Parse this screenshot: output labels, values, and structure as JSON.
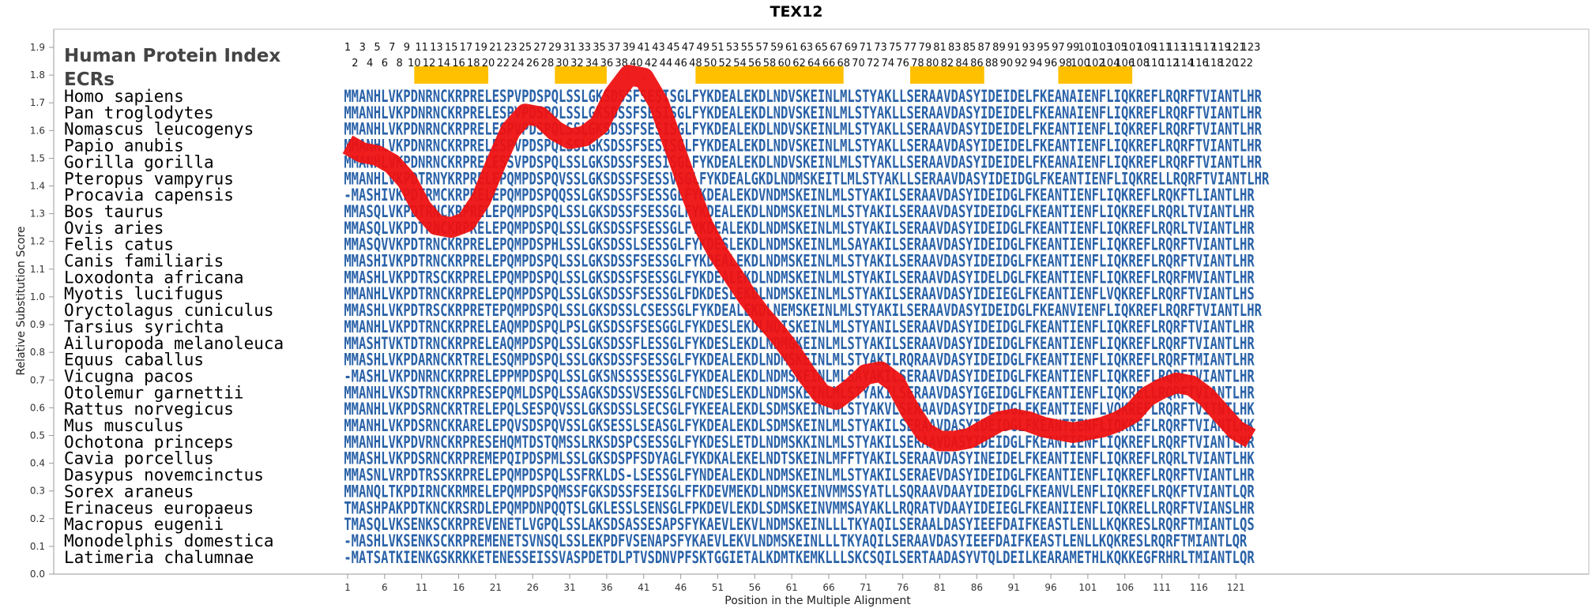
{
  "chart_data": {
    "type": "line",
    "title": "TEX12",
    "xlabel": "Position in the Multiple Alignment",
    "ylabel": "Relative Substitution Score",
    "legend_labels": {
      "index": "Human Protein Index",
      "ecrs": "ECRs"
    },
    "xlim": [
      1,
      123
    ],
    "ylim": [
      0.0,
      1.9
    ],
    "y_ticks": [
      "0.0",
      "0.1",
      "0.2",
      "0.3",
      "0.4",
      "0.5",
      "0.6",
      "0.7",
      "0.8",
      "0.9",
      "1.0",
      "1.1",
      "1.2",
      "1.3",
      "1.4",
      "1.5",
      "1.6",
      "1.7",
      "1.8",
      "1.9"
    ],
    "x_ticks": [
      "1",
      "6",
      "11",
      "16",
      "21",
      "26",
      "31",
      "36",
      "41",
      "46",
      "51",
      "56",
      "61",
      "66",
      "71",
      "76",
      "81",
      "86",
      "91",
      "96",
      "101",
      "106",
      "111",
      "116",
      "121"
    ],
    "human_index_odd": [
      "1",
      "3",
      "5",
      "7",
      "9",
      "11",
      "13",
      "15",
      "17",
      "19",
      "21",
      "23",
      "25",
      "27",
      "29",
      "31",
      "33",
      "35",
      "37",
      "39",
      "41",
      "43",
      "45",
      "47",
      "49",
      "51",
      "53",
      "55",
      "57",
      "59",
      "61",
      "63",
      "65",
      "67",
      "69",
      "71",
      "73",
      "75",
      "77",
      "79",
      "81",
      "83",
      "85",
      "87",
      "89",
      "91",
      "93",
      "95",
      "97",
      "99",
      "101",
      "103",
      "105",
      "107",
      "109",
      "111",
      "113",
      "115",
      "117",
      "119",
      "121",
      "123"
    ],
    "human_index_even": [
      "2",
      "4",
      "6",
      "8",
      "10",
      "12",
      "14",
      "16",
      "18",
      "20",
      "22",
      "24",
      "26",
      "28",
      "30",
      "32",
      "34",
      "36",
      "38",
      "40",
      "42",
      "44",
      "46",
      "48",
      "50",
      "52",
      "54",
      "56",
      "58",
      "60",
      "62",
      "64",
      "66",
      "68",
      "70",
      "72",
      "74",
      "76",
      "78",
      "80",
      "82",
      "84",
      "86",
      "88",
      "90",
      "92",
      "94",
      "96",
      "98",
      "100",
      "102",
      "104",
      "106",
      "108",
      "110",
      "112",
      "114",
      "116",
      "118",
      "120",
      "122"
    ],
    "ecrs": [
      [
        10,
        20
      ],
      [
        29,
        36
      ],
      [
        48,
        68
      ],
      [
        77,
        87
      ],
      [
        97,
        107
      ]
    ],
    "ecr_color": "#ffc000",
    "line_color": "#ee1111",
    "species": [
      "Homo sapiens",
      "Pan troglodytes",
      "Nomascus leucogenys",
      "Papio anubis",
      "Gorilla gorilla",
      "Pteropus vampyrus",
      "Procavia capensis",
      "Bos taurus",
      "Ovis aries",
      "Felis catus",
      "Canis familiaris",
      "Loxodonta africana",
      "Myotis lucifugus",
      "Oryctolagus cuniculus",
      "Tarsius syrichta",
      "Ailuropoda melanoleuca",
      "Equus caballus",
      "Vicugna pacos",
      "Otolemur garnettii",
      "Rattus norvegicus",
      "Mus musculus",
      "Ochotona princeps",
      "Cavia porcellus",
      "Dasypus novemcinctus",
      "Sorex araneus",
      "Erinaceus europaeus",
      "Macropus eugenii",
      "Monodelphis domestica",
      "Latimeria chalumnae"
    ],
    "sequences": [
      "MMANHLVKPDNRNCKRPRELESPVPDSPQLSSLGKSDSSFSESISGLFYKDEALEKDLNDVSKEINLMLSTYAKLLSERAAVDASYIDEIDELFKEANAIENFLIQKREFLRQRFTVIANTLHR",
      "MMANHLVKPDNRNCKRPRELESPVPDSPQLSSLGKSDSSFSESISGLFYKDEALEKDLNDVSKEINLMLSTYAKLLSERAAVDASYIDEIDELFKEANAIENFLIQKREFLRQRFTVIANTLHR",
      "MMANHLVKPDNRNCKRPRELESPVPDSPQLSSLGKSDSSFSESISGLFYKDEALEKDLNDVSKEINLMLSTYAKLLSERAAVDASYIDEIDELFKEANTIENFLIQKREFLRQRFTVIANTLHR",
      "MMANHLVKPDNRNCKRPRELESPVPDSPQLSSLGKSDSSFSESISGLFYKDEALEKDLNDVSKEINLMLSTYAKLLSERAAVDASYIDEIDELFKEANTIENFLIQKREFLRQRFTVIANTLHR",
      "MMANHLVKPDNRNCKRPRELESSVPDSPQLSSLGKSDSSFSESISGLFYKDEALEKDLNDVSKEINLMLSTYAKLLSERAAVDASYIDEIDELFKEANAIENFLIQKREFLRQRFTVIANTLHR",
      "MMANHLVKPDTRNYKRPRELEPQMPDSPQVSSLGKSDSSFSESSVSGLFYKDEALGKDLNDMSKEITLMLSTYAKLLSERAAVDASYIDEIDGLFKEANTIENFLIQKRELLRQRFTVIANTLHR",
      "-MASHIVKPDTRMCKRPRELEPQMPDSPQQSSLGKSDSSFSESSGLFYKDEALEKDVNDMSKEINLMLSTYAKILSERAAVDASYIDEIDGLFKEANTIENFLIQKREFLRQKFTLIANTLHR",
      "MMASQLVKPDTRNCKRPRELEPQMPDSPQLSSLGKSDSSFSESSGLFYKDEALEKDLNDMSKEINLMLSTYAKILSERAAVDASYIDEIDGLFKEANTIENFLIQKREFLRQRLTVIANTLHR",
      "MMASQLVKPDTRNCKRPRELEPQMPDSPQLSSLGKSDSSFSESSGLFYKDEALEKDLNDMSKEINLMLSTYAKILSERAAVDASYIDEIDGLFKEANTIENFLIQKREFLRQRLTVIANTLHR",
      "MMASQVVKPDTRNCKRPRELEPQMPDSPHLSSLGKSDSSLSESSGLFYKDESLEKDLNDMSKEINLMLSAYAKILSERAAVDASYIDEIDGLFKEANTIENFLIQKREFLRQRFTVIANTLHR",
      "MMASHIVKPDTRNCKRPRELEPQMPDSPQLSSLGKSDSSFSESSGLFYKDEALEKDLNDMSKEINLMLSTYAKILSERAAVDASYIDEIDGLFKEANTIENFLIQKREFLRQRFTVIANTLHR",
      "MMASHLVKPDTRSCKRPRELEPQMPDSPQLSSLGKSDSSFSESSGLFYKDEALEKDLNDMSKEINLMLSTYAKILSERAAVDASYIDELDGLFKEANTIENFLIQKREFLRQRFMVIANTLHR",
      "MMANHLVKPDTRNCKRPRELEPQMPDSPQLSSLGKSDSSFSESSGLFDKDESLEKDLNDMSKEINLMLSTYAKILSERAAVDASYIDEIEGLFKEANTIENFLVQKREFLRQRFTVIANTLHS",
      "MMASHLVKPDTRSCKRPRETEPQMPDSPQLSSLGKSDSSLCSESSGLFYKDEALEKDLNEMSKEINLMLSTYAKILSERAAVDASYIDEIDGLFKEANVIENFLIQKREFLRQRFTVIANTLHR",
      "MMANHLVKPDTRNCKRPRELEAQMPDSPQLPSLGKSDSSFSESGGLFYKDESLEKDLNDISKEINLMLSTYANILSERAAVDASYIDEIDGLFKEANTIENFLIQKREFLRQRFTVIANTLHR",
      "MMASHTVKTDTRNCKRPRELEAQMPDSPQLSSLGKSDSSFLESSGLFYKDESLEKDLNDMGKEINLMLSTYAKILSERAAVDASYIDEIDGLFKEANTIENFLIQKREFLRQRFTVIANTLHR",
      "MMASHLVKPDARNCKRTRELESQMPDSPQLSSLGKSDSSFSESSGLFYKDEALEKDLNDMSKEINLMLSTYAKILRQRAAVDASYIDEIDGLFKEANTIENFLIQKREFLRQRFTMIANTLHR",
      "-MASHLVKPDNRNCKRPRELEPPMPDSPQLSSLGKSNSSSSESSGLFYKDEALEKDLNDMSKEINLMLSAYAKILSERAAVDASYIDEIDGLFKEANTIENFLIQKREFLRQRFTVIANTLHR",
      "MMANHLVKSDTRNCKRPRESEPQMLDSPQLSSAGKSDSSVSESSGLFCNDESLEKDLNDMSKEINLMLSTYAKILSERAAVDASYIGEIDGLFKEANTIENFLIQKRELLRQRFTVIANTLHR",
      "MMANHLVKPDSRNCKRTRELEPQLSESPQVSSLGKSDSSLSECSGLFYKEEALEKDLSDMSKEINLMLSTYAKVLSERAAVDASYIDEIDGLFKEANTIENFLVQKREFLRQRFTVITNTLHK",
      "MMANHLVKPDSRNCKRARELEPQVSDSPQVSSLGKSESSLSEASGLFYKDEALEKDLSDMSKEINLMLSTYAKILSERAAVDASYIDEIDGLFKEANTIENFLIQKREFLRQRFTVIANTLHK",
      "MMANHLVKPDVRNCKRPRESEHQMTDSTQMSSLRKSDSPCSESSGLFYKDESLETDLNDMSKKINLMLSTYAKILSERAAVDASYIDEIDGLFKEANTIENFLIQKREFLRQRFTVIANTLHR",
      "MMASHLVKPDSRNCKRPREMEPQIPDSPMLSSLGKSDSPFSDYAGLFYKDKALEKELNDTSKEINLMFFTYAKILSERAAVDASYINEIDELFKEANTIENFLIQKREFLRQRLTVIANTLHK",
      "MMASNLVRPDTRSSKRPRELEPQMPDSPQLSSFRKLDS-LSESSGLFYNDEALEKDLNDMSKEINLMLSTYAKILSERAEVDASYIDEIDGLFKEANTIENFLIQKREFLRQRFTVIANTLHR",
      "MMANQLTKPDIRNCKRMRELEPQMPDSPQMSSFGKSDSSFSEISGLFFKDEVMEKDLNDMSKEINVMMSSYATLLSQRAAVDAAYIDEIDGLFKEANVLENFLIQKREFLRQKFTVIANTLQR",
      "TMASHPAKPDTKNCKRSRDLEPQMPDNPQQTSLGKLESSLSENSGLFPKDEVLEKDLSDMSKEINVMMSAYAKLLRQRATVDAAYIDEIEGLFKEANIIENFLIQKRELLRQRFTVIANSLHR",
      "TMASQLVKSENKSCKRPREVENETLVGPQLSSLAKSDSASSESAPSFYKAEVLEKVLNDMSKEINLLLTKYAQILSERAALDASYIEEFDAIFKEASTLENLLKQKRESLRQRFTMIANTLQS",
      "-MASHLVKSENKSCKRPREMENETSVNSQLSSLEKPDFVSENAPSFYKAEVLEKVLNDMSKEINLLLTKYAQILSERAAVDASYIEEFDAIFKEASTLENLLKQKRESLRQRFTMIANTLQR",
      "-MATSATKIENKGSKRKKETENESSEISSVASPDETDLPTVSDNVPFSKTGGIETALKDMTKEMKLLLSKCSQILSERTAADASYVTQLDEILKEARAMETHLKQKKEGFRHRLTMIANTLQR"
    ],
    "series": [
      {
        "x": [
          1,
          3,
          5,
          7,
          9,
          11,
          13,
          15,
          17,
          19,
          21,
          23,
          25,
          27,
          29,
          31,
          33,
          35,
          37,
          39,
          41,
          43,
          45,
          47,
          49,
          51,
          53,
          55,
          57,
          59,
          61,
          63,
          65,
          67,
          69,
          71,
          73,
          75,
          77,
          79,
          81,
          83,
          85,
          87,
          89,
          91,
          93,
          95,
          97,
          99,
          101,
          103,
          105,
          107,
          109,
          111,
          113,
          115,
          117,
          119,
          121,
          123
        ],
        "y": [
          1.55,
          1.52,
          1.51,
          1.48,
          1.42,
          1.32,
          1.26,
          1.25,
          1.27,
          1.35,
          1.48,
          1.6,
          1.66,
          1.65,
          1.6,
          1.57,
          1.58,
          1.62,
          1.73,
          1.8,
          1.79,
          1.7,
          1.55,
          1.4,
          1.26,
          1.16,
          1.08,
          1.0,
          0.93,
          0.87,
          0.8,
          0.72,
          0.65,
          0.63,
          0.67,
          0.72,
          0.73,
          0.69,
          0.59,
          0.51,
          0.48,
          0.48,
          0.49,
          0.52,
          0.55,
          0.56,
          0.55,
          0.53,
          0.52,
          0.51,
          0.52,
          0.53,
          0.55,
          0.58,
          0.64,
          0.67,
          0.69,
          0.68,
          0.64,
          0.58,
          0.52,
          0.49
        ]
      }
    ]
  }
}
